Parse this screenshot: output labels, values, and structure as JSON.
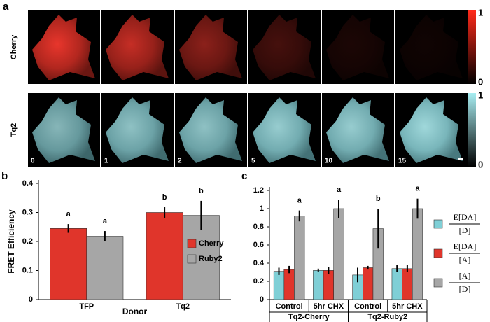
{
  "panel_a": {
    "panel_label": "a",
    "rows": [
      {
        "label": "Cherry",
        "colorbar_top": "1",
        "colorbar_bottom": "0"
      },
      {
        "label": "Tq2",
        "colorbar_top": "1",
        "colorbar_bottom": "0"
      }
    ],
    "frames": [
      "0",
      "1",
      "2",
      "5",
      "10",
      "15"
    ]
  },
  "chart_data": [
    {
      "type": "bar",
      "panel_label": "b",
      "ylabel": "FRET Efficiency",
      "xlabel": "Donor",
      "categories": [
        "TFP",
        "Tq2"
      ],
      "ylim": [
        0,
        0.4
      ],
      "yticks": [
        0,
        0.1,
        0.2,
        0.3,
        0.4
      ],
      "series": [
        {
          "name": "Cherry",
          "color": "#e0352b",
          "values": [
            0.245,
            0.3
          ],
          "errors": [
            0.015,
            0.018
          ],
          "letters": [
            "a",
            "b"
          ]
        },
        {
          "name": "Ruby2",
          "color": "#a6a6a6",
          "values": [
            0.218,
            0.29
          ],
          "errors": [
            0.018,
            0.05
          ],
          "letters": [
            "a",
            "b"
          ]
        }
      ]
    },
    {
      "type": "bar",
      "panel_label": "c",
      "categories": [
        "Control",
        "5hr CHX",
        "Control",
        "5hr CHX"
      ],
      "groups": [
        "Tq2-Cherry",
        "Tq2-Ruby2"
      ],
      "ylim": [
        0,
        1.2
      ],
      "yticks": [
        0,
        0.2,
        0.4,
        0.6,
        0.8,
        1,
        1.2
      ],
      "series": [
        {
          "numerator": "E[DA]",
          "denominator": "[D]",
          "color": "#7fcfd6",
          "values": [
            0.31,
            0.32,
            0.27,
            0.34
          ],
          "errors": [
            0.04,
            0.02,
            0.08,
            0.04
          ]
        },
        {
          "numerator": "E[DA]",
          "denominator": "[A]",
          "color": "#e0352b",
          "values": [
            0.33,
            0.32,
            0.35,
            0.34
          ],
          "errors": [
            0.04,
            0.04,
            0.02,
            0.04
          ]
        },
        {
          "numerator": "[A]",
          "denominator": "[D]",
          "color": "#a6a6a6",
          "values": [
            0.92,
            1.0,
            0.78,
            1.0
          ],
          "errors": [
            0.06,
            0.1,
            0.22,
            0.11
          ],
          "letters": [
            "a",
            "a",
            "b",
            "a"
          ]
        }
      ]
    }
  ]
}
